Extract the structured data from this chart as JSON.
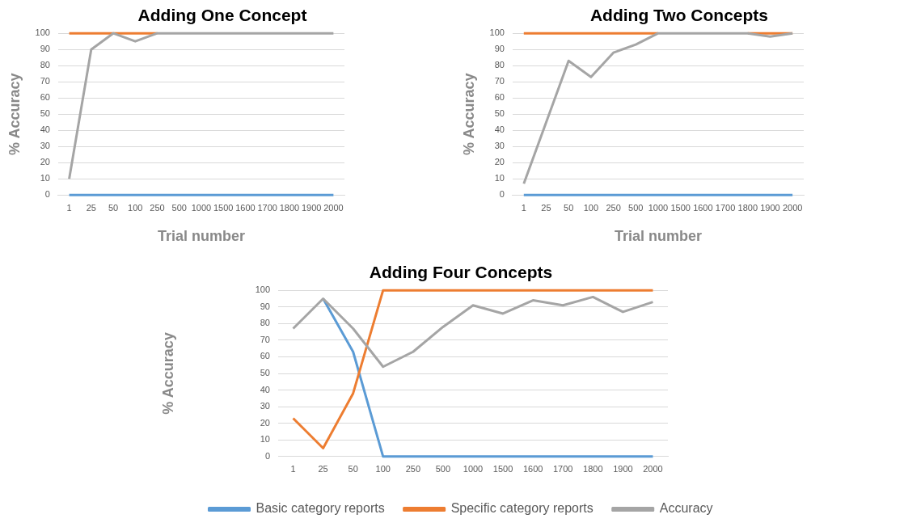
{
  "chart_data": [
    {
      "type": "line",
      "title": "Adding One Concept",
      "xlabel": "Trial number",
      "ylabel": "% Accuracy",
      "categories": [
        "1",
        "25",
        "50",
        "100",
        "250",
        "500",
        "1000",
        "1500",
        "1600",
        "1700",
        "1800",
        "1900",
        "2000"
      ],
      "ylim": [
        0,
        100
      ],
      "yticks": [
        0,
        10,
        20,
        30,
        40,
        50,
        60,
        70,
        80,
        90,
        100
      ],
      "grid": "y",
      "legend": false,
      "marker": "none",
      "line_style": "solid",
      "series": [
        {
          "color": "#5b9bd5",
          "values": [
            0,
            0,
            0,
            0,
            0,
            0,
            0,
            0,
            0,
            0,
            0,
            0,
            0
          ]
        },
        {
          "color": "#ed7d31",
          "values": [
            100,
            100,
            100,
            100,
            100,
            null,
            null,
            null,
            null,
            null,
            null,
            null,
            null
          ]
        },
        {
          "color": "#a5a5a5",
          "values": [
            10,
            90,
            100,
            95,
            100,
            100,
            100,
            100,
            100,
            100,
            100,
            100,
            100
          ]
        }
      ]
    },
    {
      "type": "line",
      "title": "Adding Two Concepts",
      "xlabel": "Trial number",
      "ylabel": "% Accuracy",
      "categories": [
        "1",
        "25",
        "50",
        "100",
        "250",
        "500",
        "1000",
        "1500",
        "1600",
        "1700",
        "1800",
        "1900",
        "2000"
      ],
      "ylim": [
        0,
        100
      ],
      "yticks": [
        0,
        10,
        20,
        30,
        40,
        50,
        60,
        70,
        80,
        90,
        100
      ],
      "grid": "y",
      "legend": false,
      "marker": "none",
      "line_style": "solid",
      "series": [
        {
          "color": "#5b9bd5",
          "values": [
            0,
            0,
            0,
            0,
            0,
            0,
            0,
            0,
            0,
            0,
            0,
            0,
            0
          ]
        },
        {
          "color": "#ed7d31",
          "values": [
            100,
            100,
            100,
            100,
            100,
            100,
            100,
            null,
            null,
            null,
            100,
            100,
            100
          ]
        },
        {
          "color": "#a5a5a5",
          "values": [
            7,
            45,
            83,
            73,
            88,
            93,
            100,
            100,
            100,
            100,
            100,
            98,
            100
          ]
        }
      ]
    },
    {
      "type": "line",
      "title": "Adding Four Concepts",
      "ylabel": "% Accuracy",
      "categories": [
        "1",
        "25",
        "50",
        "100",
        "250",
        "500",
        "1000",
        "1500",
        "1600",
        "1700",
        "1800",
        "1900",
        "2000"
      ],
      "ylim": [
        0,
        100
      ],
      "yticks": [
        0,
        10,
        20,
        30,
        40,
        50,
        60,
        70,
        80,
        90,
        100
      ],
      "grid": "y",
      "legend": "bottom",
      "marker": "none",
      "line_style": "solid",
      "series": [
        {
          "name": "Basic category reports",
          "color": "#5b9bd5",
          "values": [
            null,
            95,
            63,
            0,
            0,
            0,
            0,
            0,
            0,
            0,
            0,
            0,
            0
          ]
        },
        {
          "name": "Specific category reports",
          "color": "#ed7d31",
          "values": [
            23,
            5,
            38,
            100,
            100,
            100,
            100,
            100,
            100,
            100,
            100,
            100,
            100
          ]
        },
        {
          "name": "Accuracy",
          "color": "#a5a5a5",
          "values": [
            77,
            95,
            77,
            54,
            63,
            78,
            91,
            86,
            94,
            91,
            96,
            87,
            93
          ]
        }
      ]
    }
  ]
}
